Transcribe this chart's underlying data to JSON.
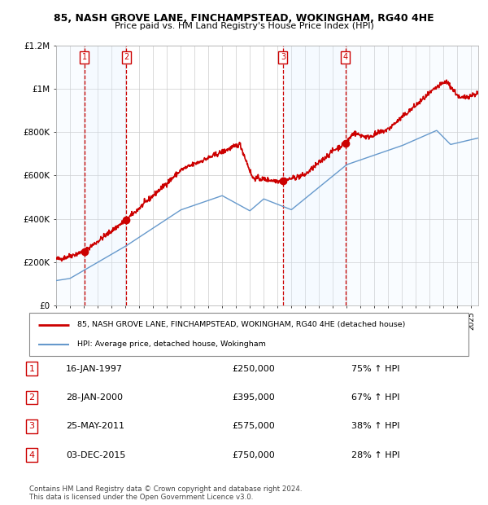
{
  "title": "85, NASH GROVE LANE, FINCHAMPSTEAD, WOKINGHAM, RG40 4HE",
  "subtitle": "Price paid vs. HM Land Registry's House Price Index (HPI)",
  "sales": [
    {
      "num": 1,
      "date_num": 1997.04,
      "price": 250000,
      "label": "16-JAN-1997",
      "pct": "75% ↑ HPI"
    },
    {
      "num": 2,
      "date_num": 2000.07,
      "price": 395000,
      "label": "28-JAN-2000",
      "pct": "67% ↑ HPI"
    },
    {
      "num": 3,
      "date_num": 2011.39,
      "price": 575000,
      "label": "25-MAY-2011",
      "pct": "38% ↑ HPI"
    },
    {
      "num": 4,
      "date_num": 2015.92,
      "price": 750000,
      "label": "03-DEC-2015",
      "pct": "28% ↑ HPI"
    }
  ],
  "legend_line1": "85, NASH GROVE LANE, FINCHAMPSTEAD, WOKINGHAM, RG40 4HE (detached house)",
  "legend_line2": "HPI: Average price, detached house, Wokingham",
  "footnote": "Contains HM Land Registry data © Crown copyright and database right 2024.\nThis data is licensed under the Open Government Licence v3.0.",
  "table_rows": [
    [
      "1",
      "16-JAN-1997",
      "£250,000",
      "75% ↑ HPI"
    ],
    [
      "2",
      "28-JAN-2000",
      "£395,000",
      "67% ↑ HPI"
    ],
    [
      "3",
      "25-MAY-2011",
      "£575,000",
      "38% ↑ HPI"
    ],
    [
      "4",
      "03-DEC-2015",
      "£750,000",
      "28% ↑ HPI"
    ]
  ],
  "red_color": "#cc0000",
  "blue_color": "#6699cc",
  "background_color": "#ffffff",
  "shade_color": "#ddeeff",
  "ylim": [
    0,
    1200000
  ],
  "xlim_start": 1995.0,
  "xlim_end": 2025.5,
  "yticks": [
    0,
    200000,
    400000,
    600000,
    800000,
    1000000,
    1200000
  ],
  "ylabels": [
    "£0",
    "£200K",
    "£400K",
    "£600K",
    "£800K",
    "£1M",
    "£1.2M"
  ]
}
